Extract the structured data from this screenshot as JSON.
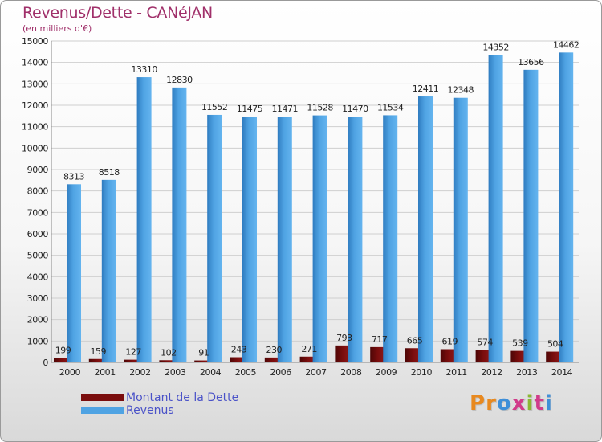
{
  "header": {
    "title": "Revenus/Dette - CANéJAN",
    "subtitle": "(en milliers d'€)"
  },
  "legend": {
    "debt_label": "Montant de la Dette",
    "revenue_label": "Revenus"
  },
  "logo": {
    "text": "Proxiti",
    "letters": [
      "P",
      "r",
      "o",
      "x",
      "i",
      "t",
      "i"
    ]
  },
  "colors": {
    "debt": "#7a0d0d",
    "revenue": "#4fa3e3",
    "title": "#a0306a",
    "legend_text": "#4a52c8",
    "grid": "#cfcfcf",
    "logo": [
      "#e8891f",
      "#e8891f",
      "#3f8fd8",
      "#d13b8a",
      "#8ab833",
      "#d13b8a",
      "#3f8fd8"
    ]
  },
  "chart_data": {
    "type": "bar",
    "title": "Revenus/Dette - CANéJAN",
    "ylabel": "(en milliers d'€)",
    "categories": [
      "2000",
      "2001",
      "2002",
      "2003",
      "2004",
      "2005",
      "2006",
      "2007",
      "2008",
      "2009",
      "2010",
      "2011",
      "2012",
      "2013",
      "2014"
    ],
    "ylim": [
      0,
      15000
    ],
    "yticks": [
      0,
      1000,
      2000,
      3000,
      4000,
      5000,
      6000,
      7000,
      8000,
      9000,
      10000,
      11000,
      12000,
      13000,
      14000,
      15000
    ],
    "grid": true,
    "legend_position": "bottom-left",
    "series": [
      {
        "name": "Montant de la Dette",
        "values": [
          199,
          159,
          127,
          102,
          91,
          243,
          230,
          271,
          793,
          717,
          665,
          619,
          574,
          539,
          504
        ]
      },
      {
        "name": "Revenus",
        "values": [
          8313,
          8518,
          13310,
          12830,
          11552,
          11475,
          11471,
          11528,
          11470,
          11534,
          12411,
          12348,
          14352,
          13656,
          14462
        ]
      }
    ]
  }
}
